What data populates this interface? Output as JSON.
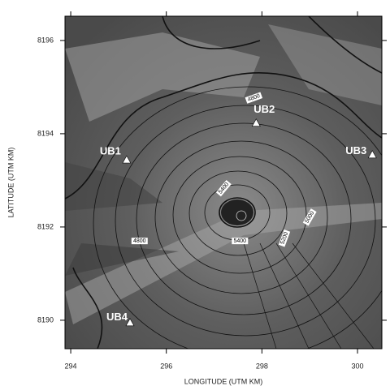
{
  "chart_data": {
    "type": "map",
    "x_label": "LONGITUDE (UTM KM)",
    "y_label": "LATITUDE (UTM KM)",
    "xlim": [
      293.88,
      300.51
    ],
    "ylim": [
      8189.39,
      8196.52
    ],
    "xticks": [
      294,
      296,
      298,
      300
    ],
    "yticks": [
      8190,
      8192,
      8194,
      8196
    ],
    "points": [
      {
        "label": "UB1",
        "x": 295.17,
        "y": 8193.44
      },
      {
        "label": "UB2",
        "x": 297.88,
        "y": 8194.23
      },
      {
        "label": "UB3",
        "x": 300.31,
        "y": 8193.55
      },
      {
        "label": "UB4",
        "x": 295.24,
        "y": 8189.95
      }
    ],
    "contour_labels": [
      {
        "label": "4800",
        "x": 297.83,
        "y": 8194.77
      },
      {
        "label": "5400",
        "x": 297.2,
        "y": 8192.83
      },
      {
        "label": "4800",
        "x": 295.44,
        "y": 8191.7
      },
      {
        "label": "5400",
        "x": 297.54,
        "y": 8191.7
      },
      {
        "label": "5200",
        "x": 298.47,
        "y": 8191.76
      },
      {
        "label": "5000",
        "x": 299.0,
        "y": 8192.21
      }
    ]
  }
}
